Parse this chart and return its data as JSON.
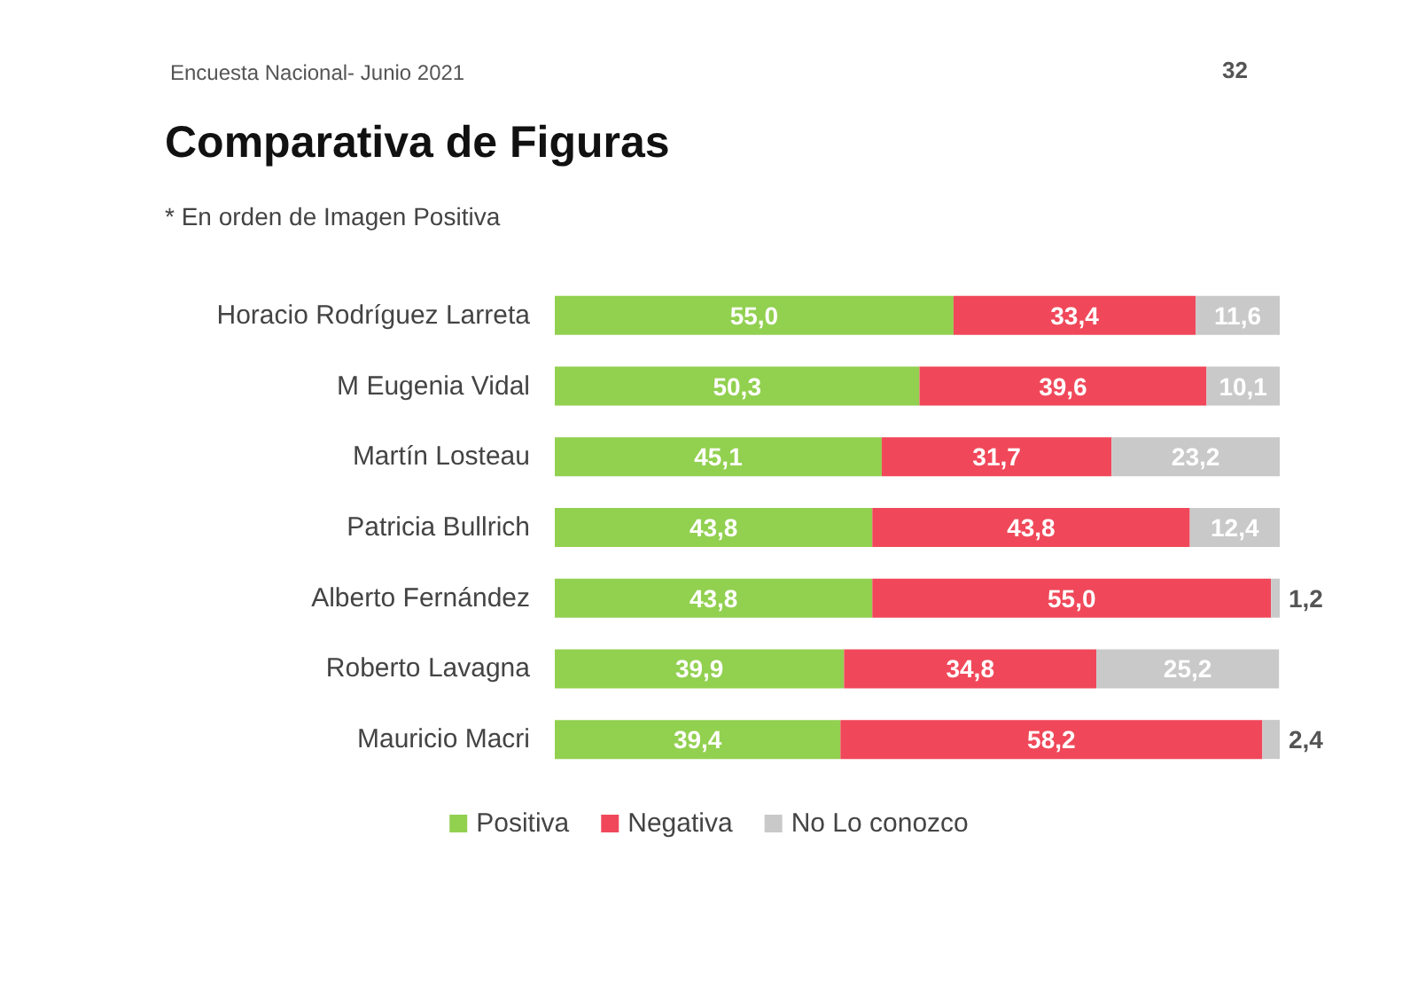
{
  "chart_data": {
    "type": "bar",
    "orientation": "horizontal",
    "stacked": true,
    "title": "Comparativa de Figuras",
    "subtitle": "* En orden de Imagen Positiva",
    "annotations": [
      "Encuesta Nacional- Junio 2021",
      "32"
    ],
    "categories": [
      "Horacio Rodríguez Larreta",
      "M Eugenia Vidal",
      "Martín Losteau",
      "Patricia Bullrich",
      "Alberto Fernández",
      "Roberto Lavagna",
      "Mauricio Macri"
    ],
    "series": [
      {
        "name": "Positiva",
        "color": "#92d050",
        "values": [
          55.0,
          50.3,
          45.1,
          43.8,
          43.8,
          39.9,
          39.4
        ],
        "value_labels": [
          "55,0",
          "50,3",
          "45,1",
          "43,8",
          "43,8",
          "39,9",
          "39,4"
        ]
      },
      {
        "name": "Negativa",
        "color": "#f0485a",
        "values": [
          33.4,
          39.6,
          31.7,
          43.8,
          55.0,
          34.8,
          58.2
        ],
        "value_labels": [
          "33,4",
          "39,6",
          "31,7",
          "43,8",
          "55,0",
          "34,8",
          "58,2"
        ]
      },
      {
        "name": "No Lo conozco",
        "color": "#c9c9c9",
        "values": [
          11.6,
          10.1,
          23.2,
          12.4,
          1.2,
          25.2,
          2.4
        ],
        "value_labels": [
          "11,6",
          "10,1",
          "23,2",
          "12,4",
          "1,2",
          "25,2",
          "2,4"
        ]
      }
    ],
    "legend": "bottom"
  }
}
